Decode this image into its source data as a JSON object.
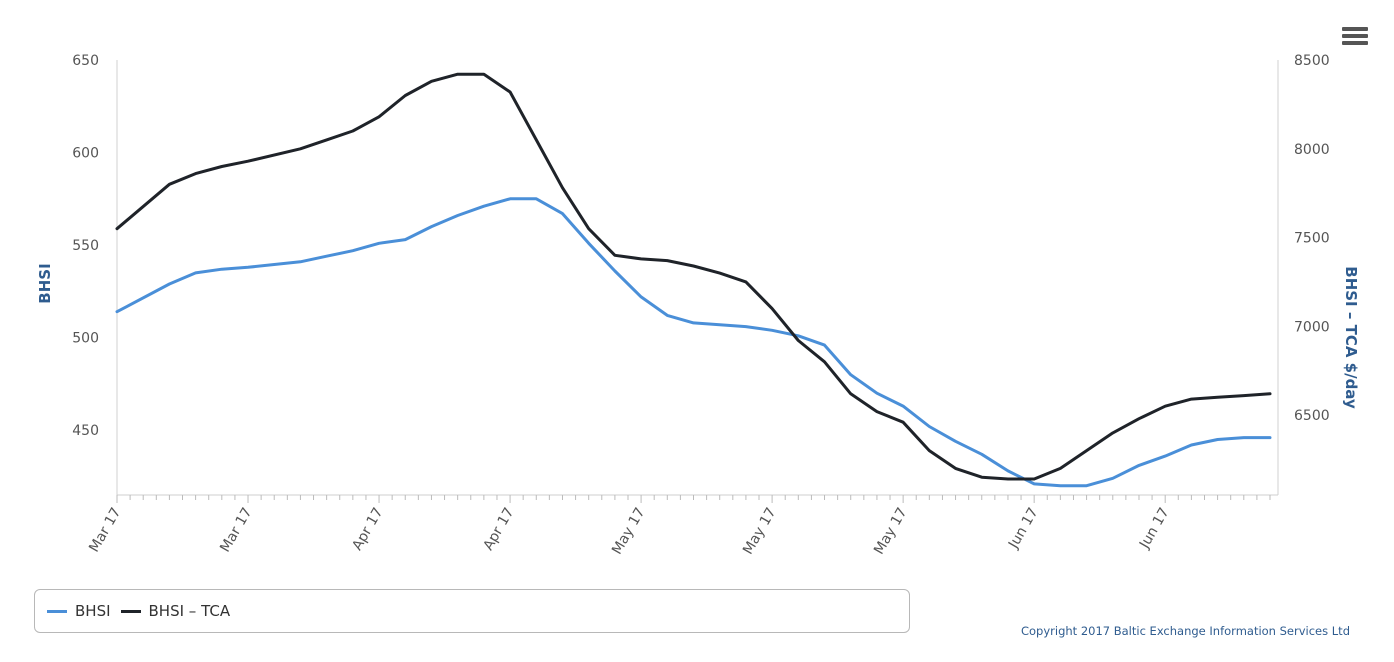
{
  "colors": {
    "bhsi": "#4a8fd8",
    "bhsi_tca": "#1f2329",
    "axis_title": "#2f5c8f",
    "tick_label": "#555555"
  },
  "menu": {
    "icon": "hamburger-menu-icon"
  },
  "legend": {
    "items": [
      {
        "label": "BHSI",
        "color": "#4a8fd8"
      },
      {
        "label": "BHSI – TCA",
        "color": "#1f2329"
      }
    ]
  },
  "credits": "Copyright 2017 Baltic Exchange Information Services Ltd",
  "chart_data": {
    "type": "line",
    "title": "",
    "grid": false,
    "legend_position": "bottom-left",
    "x_tick_labels": [
      "Mar 17",
      "Mar 17",
      "Apr 17",
      "Apr 17",
      "May 17",
      "May 17",
      "May 17",
      "Jun 17",
      "Jun 17"
    ],
    "x_tick_positions": [
      0,
      10,
      20,
      30,
      40,
      50,
      60,
      70,
      80
    ],
    "x_range": [
      0,
      88
    ],
    "y_left": {
      "label": "BHSI",
      "ticks": [
        450,
        500,
        550,
        600,
        650
      ],
      "range": [
        415,
        650
      ]
    },
    "y_right": {
      "label": "BHSI – TCA $/day",
      "ticks": [
        6500,
        7000,
        7500,
        8000,
        8500
      ],
      "range": [
        6050,
        8500
      ]
    },
    "series": [
      {
        "name": "BHSI",
        "axis": "left",
        "x": [
          0,
          4,
          6,
          8,
          10,
          14,
          16,
          18,
          20,
          22,
          24,
          26,
          28,
          30,
          32,
          34,
          36,
          38,
          40,
          42,
          44,
          46,
          48,
          50,
          52,
          54,
          56,
          58,
          60,
          62,
          64,
          66,
          68,
          70,
          72,
          74,
          76,
          78,
          80,
          82,
          84,
          86,
          88
        ],
        "values": [
          514,
          529,
          535,
          537,
          538,
          541,
          544,
          547,
          551,
          553,
          560,
          566,
          571,
          575,
          575,
          567,
          551,
          536,
          522,
          512,
          508,
          507,
          506,
          504,
          501,
          496,
          480,
          470,
          463,
          452,
          444,
          437,
          428,
          421,
          420,
          420,
          424,
          431,
          436,
          442,
          445,
          446,
          446
        ]
      },
      {
        "name": "BHSI – TCA",
        "axis": "right",
        "x": [
          0,
          4,
          6,
          8,
          10,
          14,
          16,
          18,
          20,
          22,
          24,
          26,
          28,
          30,
          32,
          34,
          36,
          38,
          40,
          42,
          44,
          46,
          48,
          50,
          52,
          54,
          56,
          58,
          60,
          62,
          64,
          66,
          68,
          70,
          72,
          74,
          76,
          78,
          80,
          82,
          84,
          86,
          88
        ],
        "values": [
          7550,
          7800,
          7860,
          7900,
          7930,
          8000,
          8050,
          8100,
          8180,
          8300,
          8380,
          8420,
          8420,
          8320,
          8050,
          7780,
          7550,
          7400,
          7380,
          7370,
          7340,
          7300,
          7250,
          7100,
          6920,
          6800,
          6620,
          6520,
          6460,
          6300,
          6200,
          6150,
          6140,
          6140,
          6200,
          6300,
          6400,
          6480,
          6550,
          6590,
          6600,
          6610,
          6620
        ]
      }
    ]
  }
}
